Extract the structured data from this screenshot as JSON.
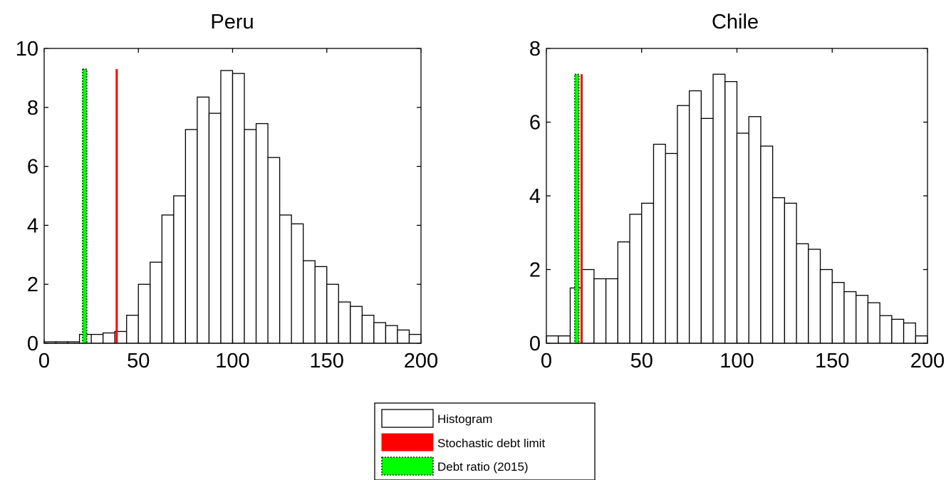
{
  "chart_data": [
    {
      "type": "bar",
      "title": "Peru",
      "xlim": [
        0,
        200
      ],
      "ylim": [
        0,
        10
      ],
      "xticks": [
        0,
        50,
        100,
        150,
        200
      ],
      "yticks": [
        0,
        2,
        4,
        6,
        8,
        10
      ],
      "bin_width": 6.25,
      "bin_starts": [
        0,
        6.25,
        12.5,
        18.75,
        25,
        31.25,
        37.5,
        43.75,
        50,
        56.25,
        62.5,
        68.75,
        75,
        81.25,
        87.5,
        93.75,
        100,
        106.25,
        112.5,
        118.75,
        125,
        131.25,
        137.5,
        143.75,
        150,
        156.25,
        162.5,
        168.75,
        175,
        181.25,
        187.5,
        193.75
      ],
      "values": [
        0.05,
        0.05,
        0.05,
        0.3,
        0.3,
        0.35,
        0.4,
        0.95,
        2.0,
        2.75,
        4.35,
        5.0,
        7.25,
        8.35,
        7.8,
        9.25,
        9.15,
        7.25,
        7.45,
        6.3,
        4.35,
        4.05,
        2.8,
        2.6,
        2.0,
        1.4,
        1.25,
        0.95,
        0.7,
        0.6,
        0.45,
        0.3
      ],
      "stochastic_debt_limit": 38.5,
      "debt_ratio_2015": 21.5,
      "lines_top": 9.3
    },
    {
      "type": "bar",
      "title": "Chile",
      "xlim": [
        0,
        200
      ],
      "ylim": [
        0,
        8
      ],
      "xticks": [
        0,
        50,
        100,
        150,
        200
      ],
      "yticks": [
        0,
        2,
        4,
        6,
        8
      ],
      "bin_width": 6.25,
      "bin_starts": [
        0,
        6.25,
        12.5,
        18.75,
        25,
        31.25,
        37.5,
        43.75,
        50,
        56.25,
        62.5,
        68.75,
        75,
        81.25,
        87.5,
        93.75,
        100,
        106.25,
        112.5,
        118.75,
        125,
        131.25,
        137.5,
        143.75,
        150,
        156.25,
        162.5,
        168.75,
        175,
        181.25,
        187.5,
        193.75
      ],
      "values": [
        0.2,
        0.2,
        1.5,
        2.0,
        1.75,
        1.75,
        2.75,
        3.5,
        3.8,
        5.4,
        5.15,
        6.45,
        6.85,
        6.1,
        7.3,
        7.1,
        5.7,
        6.15,
        5.35,
        3.95,
        3.8,
        2.7,
        2.55,
        2.0,
        1.65,
        1.4,
        1.3,
        1.1,
        0.75,
        0.65,
        0.55,
        0.2
      ],
      "stochastic_debt_limit": 18.5,
      "debt_ratio_2015": 16.0,
      "lines_top": 7.3
    }
  ],
  "legend": {
    "placement": "bottom-center",
    "items": [
      {
        "label": "Histogram",
        "fill": "#ffffff",
        "style": "solid"
      },
      {
        "label": "Stochastic debt limit",
        "fill": "#ff0000",
        "style": "solid"
      },
      {
        "label": "Debt ratio (2015)",
        "fill": "#00ff00",
        "style": "dotted"
      }
    ]
  },
  "colors": {
    "stochastic_debt_limit": "#ff0000",
    "debt_ratio": "#00ff00",
    "histogram_fill": "#ffffff",
    "edge": "#000000"
  }
}
